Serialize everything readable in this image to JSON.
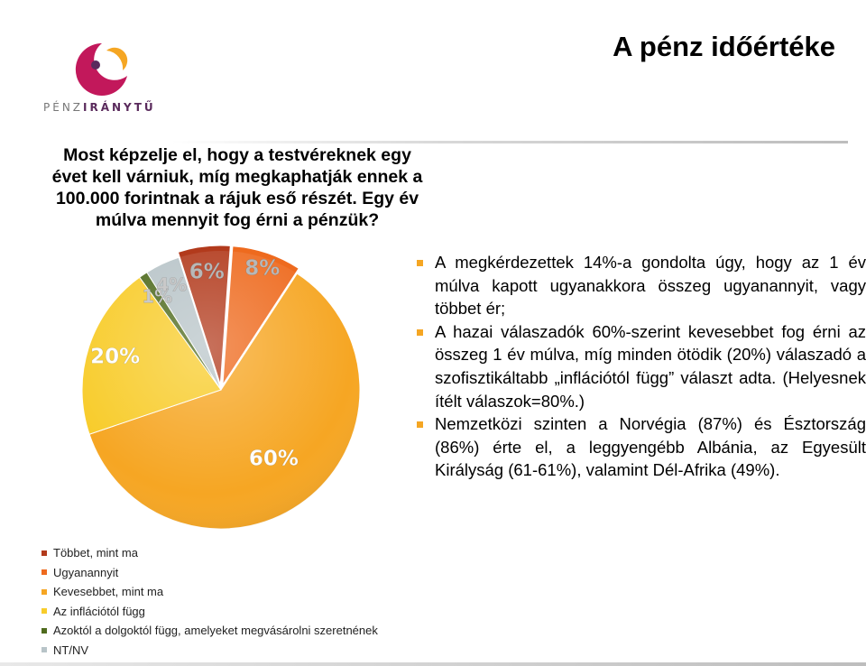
{
  "logo": {
    "text_light": "PÉNZ",
    "text_bold": "IRÁNYTŰ",
    "colors": [
      "#c2185b",
      "#f5a623",
      "#5a2a5c"
    ]
  },
  "header": {
    "title": "A pénz időértéke"
  },
  "question": {
    "lines": [
      "Most képzelje el, hogy a testvéreknek egy",
      "évet kell várniuk, míg megkaphatják ennek a",
      "100.000 forintnak a rájuk eső részét. Egy év",
      "múlva mennyit fog érni a pénzük?"
    ]
  },
  "chart_data": {
    "type": "pie",
    "slices": [
      {
        "name": "Többet, mint ma",
        "value": 6,
        "label": "6%",
        "color": "#b23a1c"
      },
      {
        "name": "Ugyanannyit",
        "value": 8,
        "label": "8%",
        "color": "#ee6a1e"
      },
      {
        "name": "Kevesebbet, mint ma",
        "value": 60,
        "label": "60%",
        "color": "#f6a623"
      },
      {
        "name": "Az inflációtól függ",
        "value": 20,
        "label": "20%",
        "color": "#f8cc2b"
      },
      {
        "name": "Azoktól a dolgoktól függ, amelyeket megvásárolni szeretnének",
        "value": 1,
        "label": "1%",
        "color": "#4f6b1e"
      },
      {
        "name": "NT/NV",
        "value": 4,
        "label": "4%",
        "color": "#b8c4c8"
      }
    ],
    "legend_position": "bottom-left"
  },
  "legend": {
    "items": [
      {
        "label": "Többet, mint ma",
        "color": "#b23a1c"
      },
      {
        "label": "Ugyanannyit",
        "color": "#ee6a1e"
      },
      {
        "label": "Kevesebbet, mint ma",
        "color": "#f6a623"
      },
      {
        "label": "Az inflációtól függ",
        "color": "#f8cc2b"
      },
      {
        "label": "Azoktól a dolgoktól függ, amelyeket megvásárolni szeretnének",
        "color": "#4f6b1e"
      },
      {
        "label": "NT/NV",
        "color": "#b8c4c8"
      }
    ]
  },
  "bullets": [
    "A megkérdezettek 14%-a gondolta úgy, hogy az 1 év múlva kapott ugyanakkora összeg ugyanannyit, vagy többet ér;",
    "A hazai válaszadók 60%-szerint kevesebbet fog érni az összeg 1 év múlva, míg minden ötödik (20%) válaszadó a szofisztikáltabb „inflációtól függ” választ adta. (Helyesnek ítélt válaszok=80%.)",
    "Nemzetközi szinten a Norvégia (87%) és Észtország (86%) érte el, a leggyengébb Albánia, az Egyesült Királyság (61-61%), valamint Dél-Afrika (49%)."
  ]
}
